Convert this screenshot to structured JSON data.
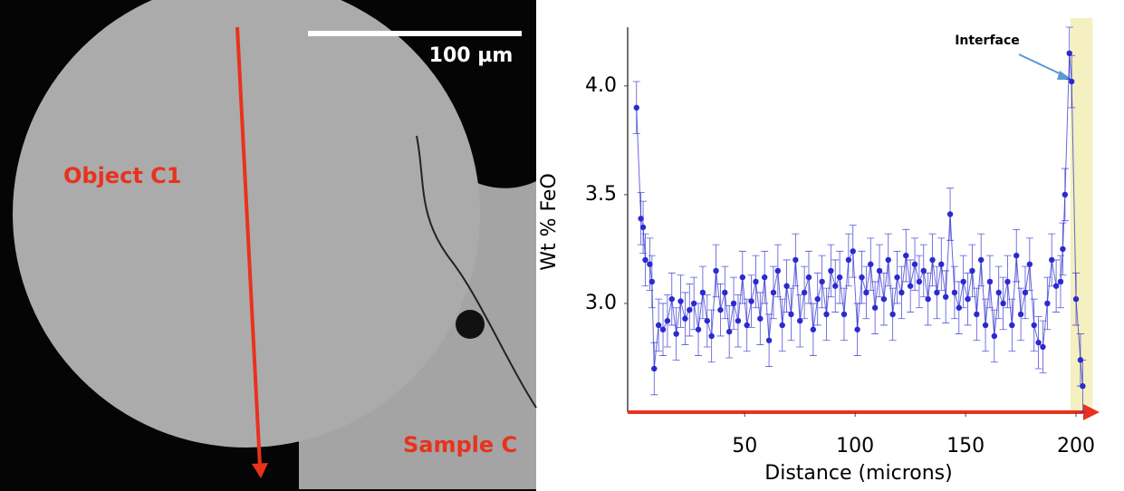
{
  "image": {
    "scale_bar": "100 µm",
    "labels": [
      "Object C1",
      "Sample C"
    ]
  },
  "chart_data": {
    "type": "scatter",
    "x_label": "Distance (microns)",
    "y_label": "Wt % FeO",
    "annotation": "Interface",
    "xlim": [
      -3,
      209
    ],
    "ylim": [
      2.5,
      4.27
    ],
    "xticks": [
      50,
      100,
      150,
      200
    ],
    "yticks": [
      {
        "value": 3,
        "label": "3.0"
      },
      3.5,
      {
        "value": 4,
        "label": "4.0"
      }
    ],
    "highlight": [
      197.5,
      207.5
    ],
    "series": [
      {
        "color": "#2a2ad0",
        "error": 0.12,
        "x": [
          1,
          3,
          4,
          5,
          7,
          8,
          9,
          11,
          13,
          15,
          17,
          19,
          21,
          23,
          25,
          27,
          29,
          31,
          33,
          35,
          37,
          39,
          41,
          43,
          45,
          47,
          49,
          51,
          53,
          55,
          57,
          59,
          61,
          63,
          65,
          67,
          69,
          71,
          73,
          75,
          77,
          79,
          81,
          83,
          85,
          87,
          89,
          91,
          93,
          95,
          97,
          99,
          101,
          103,
          105,
          107,
          109,
          111,
          113,
          115,
          117,
          119,
          121,
          123,
          125,
          127,
          129,
          131,
          133,
          135,
          137,
          139,
          141,
          143,
          145,
          147,
          149,
          151,
          153,
          155,
          157,
          159,
          161,
          163,
          165,
          167,
          169,
          171,
          173,
          175,
          177,
          179,
          181,
          183,
          185,
          187,
          189,
          191,
          193,
          194,
          195,
          197,
          198,
          200,
          202,
          203
        ],
        "values": [
          3.9,
          3.39,
          3.35,
          3.2,
          3.18,
          3.1,
          2.7,
          2.9,
          2.88,
          2.92,
          3.02,
          2.86,
          3.01,
          2.93,
          2.97,
          3.0,
          2.88,
          3.05,
          2.92,
          2.85,
          3.15,
          2.97,
          3.05,
          2.87,
          3.0,
          2.92,
          3.12,
          2.9,
          3.01,
          3.1,
          2.93,
          3.12,
          2.83,
          3.05,
          3.15,
          2.9,
          3.08,
          2.95,
          3.2,
          2.92,
          3.05,
          3.12,
          2.88,
          3.02,
          3.1,
          2.95,
          3.15,
          3.08,
          3.12,
          2.95,
          3.2,
          3.24,
          2.88,
          3.12,
          3.05,
          3.18,
          2.98,
          3.15,
          3.02,
          3.2,
          2.95,
          3.12,
          3.05,
          3.22,
          3.08,
          3.18,
          3.1,
          3.15,
          3.02,
          3.2,
          3.05,
          3.18,
          3.03,
          3.41,
          3.05,
          2.98,
          3.1,
          3.02,
          3.15,
          2.95,
          3.2,
          2.9,
          3.1,
          2.85,
          3.05,
          3.0,
          3.1,
          2.9,
          3.22,
          2.95,
          3.05,
          3.18,
          2.9,
          2.82,
          2.8,
          3.0,
          3.2,
          3.08,
          3.1,
          3.25,
          3.5,
          4.15,
          4.02,
          3.02,
          2.74,
          2.62
        ]
      }
    ]
  }
}
